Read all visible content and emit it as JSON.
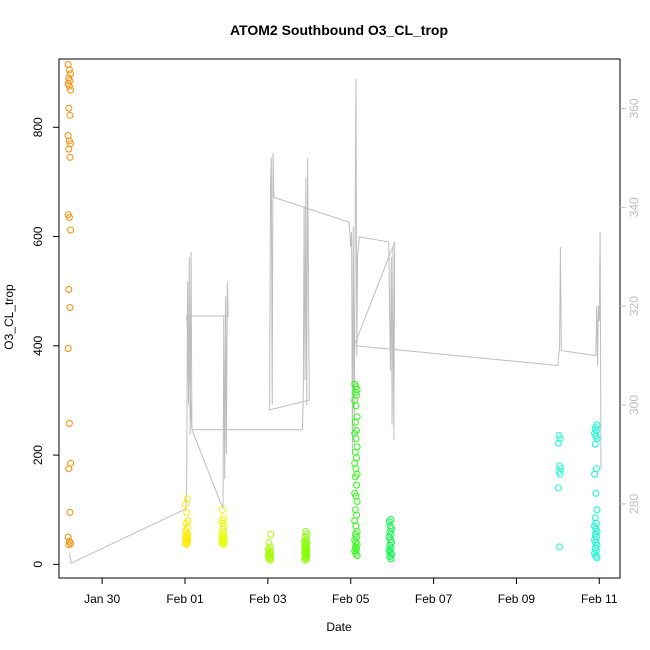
{
  "chart_data": {
    "type": "scatter",
    "title": "ATOM2 Southbound O3_CL_trop",
    "xlabel": "Date",
    "ylabel": "O3_CL_trop",
    "x_ticks": [
      "Jan 30",
      "Feb 01",
      "Feb 03",
      "Feb 05",
      "Feb 07",
      "Feb 09",
      "Feb 11"
    ],
    "y_ticks": [
      "0",
      "200",
      "400",
      "600",
      "800"
    ],
    "y2_ticks": [
      "280",
      "300",
      "320",
      "340",
      "360"
    ],
    "xlim": [
      "2017-01-28T23:00",
      "2017-02-11T12:00"
    ],
    "ylim": [
      -25,
      925
    ],
    "y2lim": [
      265,
      370
    ],
    "grid": false,
    "legend": "none",
    "colors": {
      "line": "#bebebe",
      "axis": "#000000",
      "axis_right": "#bebebe"
    },
    "point_series": [
      {
        "t": "2017-01-29T05:00",
        "color": "#ff8c00",
        "values": [
          915,
          905,
          898,
          890,
          885,
          880,
          875,
          868,
          835,
          822,
          785,
          775,
          770,
          760,
          745,
          640,
          635,
          612,
          503,
          470,
          395,
          258,
          185,
          175,
          95,
          50,
          42,
          38,
          36
        ]
      },
      {
        "t": "2017-02-01T01:00",
        "color": "#ffea00",
        "values": [
          120,
          110,
          95,
          80,
          75,
          68,
          62,
          58,
          55,
          52,
          50,
          48,
          46,
          44,
          42,
          40,
          38,
          36
        ]
      },
      {
        "t": "2017-02-01T22:00",
        "color": "#e4ff00",
        "values": [
          100,
          85,
          80,
          75,
          70,
          65,
          60,
          56,
          52,
          50,
          48,
          46,
          44,
          42,
          40,
          38,
          36
        ]
      },
      {
        "t": "2017-02-03T01:00",
        "color": "#a4ff00",
        "values": [
          55,
          40,
          32,
          28,
          25,
          22,
          20,
          18,
          16,
          14,
          12,
          10,
          8
        ]
      },
      {
        "t": "2017-02-03T22:00",
        "color": "#84ff00",
        "values": [
          60,
          55,
          50,
          45,
          42,
          40,
          38,
          35,
          32,
          30,
          28,
          26,
          24,
          22,
          20,
          18,
          16,
          14,
          12,
          10,
          8
        ]
      },
      {
        "t": "2017-02-05T03:00",
        "color": "#2aff10",
        "values": [
          330,
          325,
          320,
          315,
          310,
          300,
          290,
          270,
          260,
          245,
          240,
          230,
          215,
          205,
          195,
          185,
          175,
          165,
          160,
          145,
          130,
          125,
          115,
          100,
          90,
          80,
          70,
          60,
          55,
          50,
          45,
          40,
          36,
          32,
          28,
          24,
          20,
          16
        ]
      },
      {
        "t": "2017-02-05T23:00",
        "color": "#00ff44",
        "values": [
          82,
          78,
          70,
          65,
          60,
          55,
          50,
          45,
          40,
          35,
          30,
          26,
          22,
          18,
          14,
          10
        ]
      },
      {
        "t": "2017-02-10T01:00",
        "color": "#1effc8",
        "values": [
          236,
          230,
          222,
          180,
          175,
          170,
          165,
          140,
          32
        ]
      },
      {
        "t": "2017-02-10T22:00",
        "color": "#00ffd0",
        "values": [
          255,
          250,
          245,
          240,
          235,
          230,
          220,
          175,
          165,
          130,
          100,
          85,
          75,
          70,
          65,
          60,
          55,
          50,
          45,
          40,
          35,
          30,
          25,
          20,
          15,
          12
        ]
      }
    ],
    "line_series": {
      "axis": "right",
      "points": [
        [
          "2017-01-29T05:00",
          270
        ],
        [
          "2017-01-29T06:00",
          268
        ],
        [
          "2017-02-01T00:30",
          279
        ],
        [
          "2017-02-01T01:00",
          285
        ],
        [
          "2017-02-01T01:30",
          325
        ],
        [
          "2017-02-01T02:00",
          300
        ],
        [
          "2017-02-01T02:30",
          330
        ],
        [
          "2017-02-01T03:00",
          294
        ],
        [
          "2017-02-01T03:30",
          331
        ],
        [
          "2017-02-01T04:00",
          295
        ],
        [
          "2017-02-01T22:00",
          279
        ],
        [
          "2017-02-01T22:30",
          318
        ],
        [
          "2017-02-01T23:00",
          285
        ],
        [
          "2017-02-01T23:30",
          322
        ],
        [
          "2017-02-02T00:00",
          290
        ],
        [
          "2017-02-02T00:30",
          325
        ],
        [
          "2017-02-02T01:00",
          318
        ],
        [
          "2017-02-01T01:00",
          318
        ],
        [
          "2017-02-01T04:00",
          295
        ],
        [
          "2017-02-03T20:00",
          295
        ],
        [
          "2017-02-03T20:30",
          302
        ],
        [
          "2017-02-03T21:00",
          340
        ],
        [
          "2017-02-03T21:30",
          305
        ],
        [
          "2017-02-03T22:00",
          346
        ],
        [
          "2017-02-03T22:30",
          300
        ],
        [
          "2017-02-03T23:00",
          350
        ],
        [
          "2017-02-04T00:00",
          301
        ],
        [
          "2017-02-03T01:00",
          299
        ],
        [
          "2017-02-03T01:30",
          345
        ],
        [
          "2017-02-03T02:00",
          350
        ],
        [
          "2017-02-03T02:30",
          300
        ],
        [
          "2017-02-03T03:00",
          351
        ],
        [
          "2017-02-03T03:30",
          342
        ],
        [
          "2017-02-04T23:00",
          337
        ],
        [
          "2017-02-05T00:00",
          332
        ],
        [
          "2017-02-05T00:30",
          335
        ],
        [
          "2017-02-05T01:00",
          290
        ],
        [
          "2017-02-05T01:30",
          336
        ],
        [
          "2017-02-05T02:00",
          292
        ],
        [
          "2017-02-05T03:00",
          366
        ],
        [
          "2017-02-05T03:30",
          310
        ],
        [
          "2017-02-05T04:00",
          330
        ],
        [
          "2017-02-05T05:00",
          334
        ],
        [
          "2017-02-05T22:00",
          333
        ],
        [
          "2017-02-05T23:00",
          307
        ],
        [
          "2017-02-05T23:30",
          330
        ],
        [
          "2017-02-06T00:00",
          296
        ],
        [
          "2017-02-06T00:30",
          332
        ],
        [
          "2017-02-06T01:00",
          293
        ],
        [
          "2017-02-06T01:30",
          333
        ],
        [
          "2017-02-05T02:00",
          312
        ],
        [
          "2017-02-10T00:00",
          308
        ],
        [
          "2017-02-10T01:00",
          312
        ],
        [
          "2017-02-10T01:30",
          332
        ],
        [
          "2017-02-10T02:00",
          311
        ],
        [
          "2017-02-10T22:00",
          310
        ],
        [
          "2017-02-10T22:30",
          320
        ],
        [
          "2017-02-10T23:00",
          308
        ],
        [
          "2017-02-10T23:30",
          320
        ],
        [
          "2017-02-11T00:00",
          317
        ],
        [
          "2017-02-11T00:30",
          335
        ],
        [
          "2017-02-11T01:00",
          287
        ]
      ]
    }
  }
}
